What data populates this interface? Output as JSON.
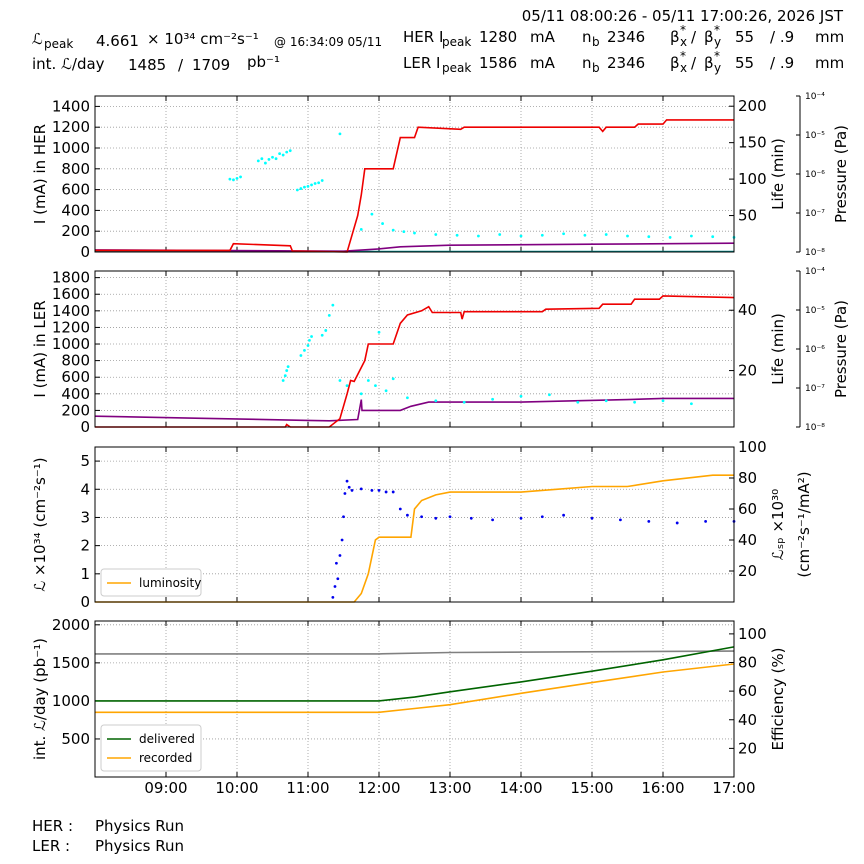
{
  "header": {
    "time_range": "05/11 08:00:26 - 05/11 17:00:26, 2026 JST",
    "lum_symbol": "ℒ",
    "peak": "peak",
    "lum_peak": "4.661",
    "lum_unit": "× 10³⁴ cm⁻²s⁻¹",
    "lum_peak_time": "@ 16:34:09 05/11",
    "int_lum_label": "int. ℒ/day",
    "int_lum_recorded": "1485",
    "slash": "/",
    "int_lum_delivered": "1709",
    "int_lum_unit": "pb⁻¹",
    "beta": {
      "symbol": "β",
      "star": "*",
      "x": "x",
      "sep": "/ ",
      "y": "y"
    },
    "rings": [
      {
        "label": "HER I",
        "current": "1280",
        "unit": "mA",
        "nb_symbol": "n",
        "nb_sub": "b",
        "nb": "2346",
        "beta_x": "55",
        "beta_y": "/ .9",
        "beta_unit": "mm"
      },
      {
        "label": "LER I",
        "current": "1586",
        "unit": "mA",
        "nb_symbol": "n",
        "nb_sub": "b",
        "nb": "2346",
        "beta_x": "55",
        "beta_y": "/ .9",
        "beta_unit": "mm"
      }
    ]
  },
  "chart_data": [
    {
      "type": "line",
      "grid": true,
      "xlim": [
        8.0,
        17.0
      ],
      "xticks": [
        9,
        10,
        11,
        12,
        13,
        14,
        15,
        16,
        17
      ],
      "ylim": [
        0,
        1500
      ],
      "yticks": [
        0,
        200,
        400,
        600,
        800,
        1000,
        1200,
        1400
      ],
      "ylabel": "I (mA) in HER",
      "y2lim": [
        0,
        214
      ],
      "y2ticks": [
        50,
        100,
        150,
        200
      ],
      "y2label": "Life (min)",
      "y3lim": [
        1e-08,
        0.0001
      ],
      "y3log": true,
      "y3label": "Pressure (Pa)",
      "y3ticks": [
        {
          "value": 1e-08,
          "label": "10⁻⁸"
        },
        {
          "value": 1e-07,
          "label": "10⁻⁷"
        },
        {
          "value": 1e-06,
          "label": "10⁻⁶"
        },
        {
          "value": 1e-05,
          "label": "10⁻⁵"
        },
        {
          "value": 0.0001,
          "label": "10⁻⁴"
        }
      ],
      "series": [
        {
          "color": "#008b8b",
          "x": [
            8,
            11.5,
            17
          ],
          "values": [
            12,
            4,
            4
          ]
        },
        {
          "color": "#800080",
          "x": [
            8,
            11.5,
            12,
            12.3,
            13,
            15,
            17
          ],
          "values": [
            20,
            8,
            30,
            50,
            65,
            75,
            85
          ]
        },
        {
          "color": "#ee0000",
          "x": [
            8,
            9.9,
            9.95,
            10.75,
            10.78,
            11.55,
            11.7,
            11.75,
            11.8,
            12.2,
            12.3,
            12.5,
            12.55,
            13.15,
            13.2,
            15.1,
            15.15,
            15.2,
            15.6,
            15.65,
            16.0,
            16.05,
            17.0
          ],
          "values": [
            15,
            15,
            80,
            60,
            10,
            0,
            350,
            550,
            800,
            800,
            1100,
            1100,
            1200,
            1180,
            1200,
            1200,
            1160,
            1200,
            1200,
            1230,
            1230,
            1270,
            1270
          ]
        },
        {
          "color": "#00ffff",
          "axis": "y2",
          "marker": "dot",
          "x": [
            9.9,
            9.95,
            10.0,
            10.05,
            10.3,
            10.35,
            10.4,
            10.45,
            10.5,
            10.55,
            10.6,
            10.65,
            10.7,
            10.75,
            10.85,
            10.9,
            10.95,
            11.0,
            11.05,
            11.1,
            11.15,
            11.2,
            11.45,
            11.75,
            11.9,
            12.05,
            12.2,
            12.35,
            12.5,
            12.8,
            13.1,
            13.4,
            13.7,
            14.0,
            14.3,
            14.6,
            14.9,
            15.2,
            15.5,
            15.8,
            16.1,
            16.4,
            16.7,
            17.0
          ],
          "values": [
            100,
            99,
            101,
            103,
            125,
            128,
            122,
            127,
            130,
            128,
            135,
            133,
            137,
            139,
            85,
            87,
            89,
            90,
            92,
            94,
            95,
            98,
            162,
            31,
            52,
            39,
            30,
            28,
            26,
            24,
            23,
            22,
            24,
            22,
            23,
            25,
            23,
            24,
            22,
            21,
            20,
            22,
            21,
            20
          ]
        }
      ]
    },
    {
      "type": "line",
      "grid": true,
      "xlim": [
        8.0,
        17.0
      ],
      "xticks": [
        9,
        10,
        11,
        12,
        13,
        14,
        15,
        16,
        17
      ],
      "ylim": [
        0,
        1880
      ],
      "yticks": [
        0,
        200,
        400,
        600,
        800,
        1000,
        1200,
        1400,
        1600,
        1800
      ],
      "ylabel": "I (mA) in LER",
      "y2lim": [
        1.3,
        53
      ],
      "y2ticks": [
        20,
        40
      ],
      "y2label": "Life (min)",
      "y3lim": [
        1e-08,
        0.0001
      ],
      "y3log": true,
      "y3label": "Pressure (Pa)",
      "y3ticks": [
        {
          "value": 1e-08,
          "label": "10⁻⁸"
        },
        {
          "value": 1e-07,
          "label": "10⁻⁷"
        },
        {
          "value": 1e-06,
          "label": "10⁻⁶"
        },
        {
          "value": 1e-05,
          "label": "10⁻⁵"
        },
        {
          "value": 0.0001,
          "label": "10⁻⁴"
        }
      ],
      "series": [
        {
          "color": "#800080",
          "x": [
            8,
            9.5,
            11,
            11.3,
            11.7,
            11.75,
            11.76,
            12.3,
            12.45,
            12.7,
            14,
            15.5,
            16,
            17
          ],
          "values": [
            130,
            105,
            80,
            75,
            90,
            330,
            200,
            200,
            250,
            300,
            300,
            330,
            345,
            345
          ]
        },
        {
          "color": "#ee0000",
          "x": [
            8,
            10.68,
            10.7,
            10.75,
            11.3,
            11.45,
            11.55,
            11.6,
            11.65,
            11.8,
            11.85,
            12.2,
            12.3,
            12.4,
            12.6,
            12.7,
            12.75,
            13.15,
            13.17,
            13.2,
            14.3,
            14.35,
            15.1,
            15.15,
            15.55,
            15.6,
            15.95,
            16.0,
            17.0
          ],
          "values": [
            0,
            0,
            30,
            0,
            0,
            100,
            400,
            560,
            550,
            800,
            1000,
            1000,
            1250,
            1350,
            1400,
            1450,
            1380,
            1380,
            1300,
            1390,
            1390,
            1420,
            1430,
            1480,
            1480,
            1540,
            1540,
            1580,
            1560
          ]
        },
        {
          "color": "#00ffff",
          "axis": "y2",
          "marker": "dot",
          "x": [
            10.65,
            10.68,
            10.7,
            10.72,
            10.9,
            10.95,
            11.0,
            11.02,
            11.05,
            11.2,
            11.25,
            11.3,
            11.35,
            11.45,
            11.55,
            11.75,
            11.85,
            11.95,
            12.0,
            12.1,
            12.2,
            12.4,
            12.8,
            13.2,
            13.6,
            14.0,
            14.4,
            14.8,
            15.2,
            15.6,
            16.0,
            16.4
          ],
          "values": [
            16.7,
            18.3,
            20,
            21.3,
            25,
            26.7,
            28.3,
            30,
            31.3,
            31.7,
            33.3,
            38.3,
            41.7,
            16.7,
            15,
            12.3,
            16.7,
            15,
            32.7,
            13.3,
            17.3,
            11,
            10,
            9.5,
            10.5,
            11.5,
            12,
            9.5,
            10,
            9.5,
            10,
            9
          ]
        }
      ]
    },
    {
      "type": "line",
      "grid": true,
      "xlim": [
        8.0,
        17.0
      ],
      "xticks": [
        9,
        10,
        11,
        12,
        13,
        14,
        15,
        16,
        17
      ],
      "ylim": [
        0,
        5.5
      ],
      "yticks": [
        0,
        1,
        2,
        3,
        4,
        5
      ],
      "ylabel": "ℒ ×10³⁴ (cm⁻²s⁻¹)",
      "y2lim": [
        0,
        100
      ],
      "y2ticks": [
        20,
        40,
        60,
        80,
        100
      ],
      "y2label": [
        "ℒₛₚ ×10³⁰",
        "(cm⁻²s⁻¹/mA²)"
      ],
      "legend": "lower left",
      "series": [
        {
          "color": "#0000ee",
          "axis": "y2",
          "marker": "dot",
          "x": [
            11.35,
            11.38,
            11.4,
            11.42,
            11.45,
            11.48,
            11.5,
            11.52,
            11.55,
            11.58,
            11.62,
            11.75,
            11.9,
            12.0,
            12.1,
            12.2,
            12.3,
            12.4,
            12.6,
            12.8,
            13.0,
            13.3,
            13.6,
            14.0,
            14.3,
            14.6,
            15.0,
            15.4,
            15.8,
            16.2,
            16.6,
            17.0
          ],
          "values": [
            3,
            10,
            25,
            15,
            30,
            40,
            55,
            70,
            78,
            74,
            72,
            73,
            72,
            72,
            71,
            71,
            60,
            56,
            55,
            54,
            55,
            54,
            53,
            54,
            55,
            56,
            54,
            53,
            52,
            51,
            52,
            52
          ]
        },
        {
          "name": "luminosity",
          "color": "#ffa500",
          "x": [
            8,
            11.65,
            11.75,
            11.85,
            11.95,
            12.0,
            12.45,
            12.5,
            12.6,
            12.8,
            13.0,
            14.0,
            14.5,
            15.0,
            15.5,
            16.0,
            16.7,
            17.0
          ],
          "values": [
            0,
            0,
            0.3,
            1.0,
            2.2,
            2.3,
            2.3,
            3.3,
            3.6,
            3.8,
            3.9,
            3.9,
            4.0,
            4.1,
            4.1,
            4.3,
            4.5,
            4.5
          ]
        }
      ]
    },
    {
      "type": "line",
      "grid": true,
      "xlim": [
        8.0,
        17.0
      ],
      "xticks": [
        {
          "value": 9,
          "label": "09:00"
        },
        {
          "value": 10,
          "label": "10:00"
        },
        {
          "value": 11,
          "label": "11:00"
        },
        {
          "value": 12,
          "label": "12:00"
        },
        {
          "value": 13,
          "label": "13:00"
        },
        {
          "value": 14,
          "label": "14:00"
        },
        {
          "value": 15,
          "label": "15:00"
        },
        {
          "value": 16,
          "label": "16:00"
        },
        {
          "value": 17,
          "label": "17:00"
        }
      ],
      "ylim": [
        0,
        2050
      ],
      "yticks": [
        500,
        1000,
        1500,
        2000
      ],
      "ylabel": "int. ℒ/day (pb⁻¹)",
      "y2lim": [
        0,
        109
      ],
      "y2ticks": [
        20,
        40,
        60,
        80,
        100
      ],
      "y2label": "Efficiency (%)",
      "legend": "lower left",
      "series": [
        {
          "color": "#808080",
          "axis": "y2",
          "x": [
            8,
            12,
            13,
            17
          ],
          "values": [
            86,
            86,
            87,
            88
          ]
        },
        {
          "name": "delivered",
          "color": "#006400",
          "x": [
            8,
            12,
            12.5,
            13,
            14,
            15,
            16,
            17
          ],
          "values": [
            1000,
            1000,
            1050,
            1120,
            1250,
            1390,
            1540,
            1709
          ]
        },
        {
          "name": "recorded",
          "color": "#ffa500",
          "x": [
            8,
            12,
            12.5,
            13,
            14,
            15,
            16,
            17
          ],
          "values": [
            850,
            850,
            900,
            950,
            1100,
            1240,
            1380,
            1485
          ]
        }
      ]
    }
  ],
  "footer": {
    "rows": [
      {
        "ring": "HER :",
        "mode": "Physics Run"
      },
      {
        "ring": "LER :",
        "mode": "Physics Run"
      }
    ]
  }
}
